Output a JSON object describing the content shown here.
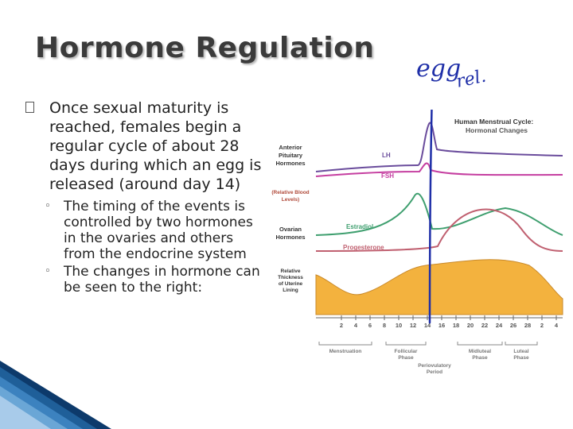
{
  "slide": {
    "title": "Hormone Regulation",
    "bullets": [
      {
        "text": "Once sexual maturity is reached, females begin a regular cycle of about 28 days during which an egg is released (around day 14)",
        "sub": [
          "The timing of the events is controlled by two hormones in the ovaries and others from the endocrine system",
          "The changes in hormone can be seen to the right:"
        ]
      }
    ]
  },
  "figure": {
    "title_line1": "Human Menstrual Cycle:",
    "title_line2": "Hormonal Changes",
    "pituitary_label": [
      "Anterior",
      "Pituitary",
      "Hormones"
    ],
    "blood_label": [
      "(Relative Blood",
      "Levels)"
    ],
    "ovarian_label": [
      "Ovarian",
      "Hormones"
    ],
    "lining_label": [
      "Relative",
      "Thickness",
      "of Uterine",
      "Lining"
    ],
    "curve_labels": {
      "lh": "LH",
      "fsh": "FSH",
      "estradiol": "Estradiol",
      "progesterone": "Progesterone"
    },
    "days": [
      "2",
      "4",
      "6",
      "8",
      "10",
      "12",
      "14",
      "16",
      "18",
      "20",
      "22",
      "24",
      "26",
      "28",
      "2",
      "4"
    ],
    "phases": {
      "menstruation": "Menstruation",
      "follicular": [
        "Follicular",
        "Phase"
      ],
      "periovulatory": [
        "Periovulatory",
        "Period"
      ],
      "midluteal": [
        "Midluteal",
        "Phase"
      ],
      "luteal": [
        "Luteal",
        "Phase"
      ]
    },
    "colors": {
      "lh": "#6a4c9c",
      "fsh": "#c53ea0",
      "estradiol": "#3f9f6f",
      "progesterone": "#c06070",
      "lining": "#f3b23e",
      "ink": "#1f2fa8"
    }
  },
  "annotation": {
    "handwritten": [
      "egg",
      "rel."
    ]
  }
}
